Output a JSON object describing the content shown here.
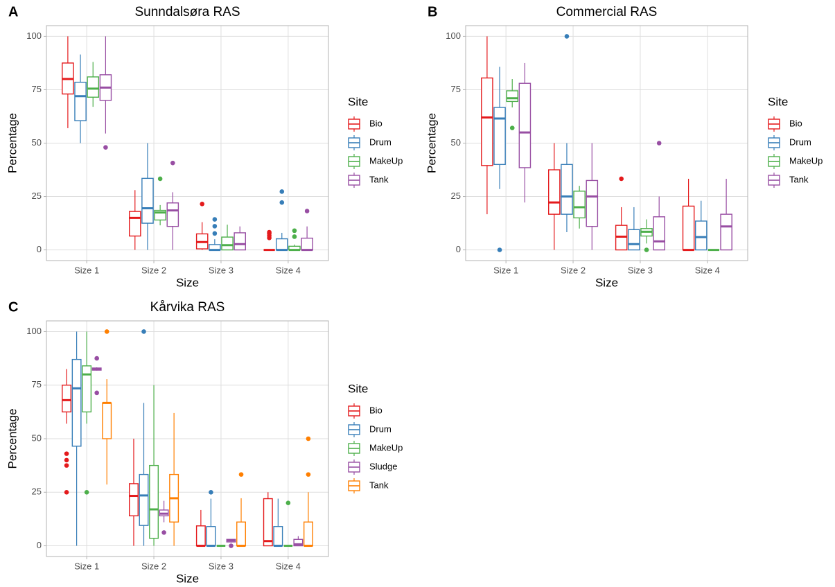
{
  "chart_data": [
    {
      "type": "box",
      "panel_label": "A",
      "title": "Sunndalsøra RAS",
      "xlabel": "Size",
      "ylabel": "Percentage",
      "legend_title": "Site",
      "categories": [
        "Size 1",
        "Size 2",
        "Size 3",
        "Size 4"
      ],
      "ylim": [
        -5,
        105
      ],
      "yticks": [
        0,
        25,
        50,
        75,
        100
      ],
      "grid": true,
      "series": [
        {
          "name": "Bio",
          "color": "#e41a1c",
          "boxes": [
            {
              "low": 57,
              "q1": 73,
              "median": 80,
              "q3": 87.5,
              "high": 100,
              "outliers": []
            },
            {
              "low": 0,
              "q1": 6.5,
              "median": 15,
              "q3": 18,
              "high": 28,
              "outliers": []
            },
            {
              "low": 0,
              "q1": 0.5,
              "median": 3.7,
              "q3": 7.5,
              "high": 13,
              "outliers": [
                21.5
              ]
            },
            {
              "low": 0,
              "q1": 0,
              "median": 0,
              "q3": 0,
              "high": 0,
              "outliers": [
                8.3,
                7.7,
                6.7,
                5.6
              ]
            }
          ]
        },
        {
          "name": "Drum",
          "color": "#377eb8",
          "boxes": [
            {
              "low": 50,
              "q1": 60.5,
              "median": 72,
              "q3": 78.5,
              "high": 91.5,
              "outliers": []
            },
            {
              "low": 0,
              "q1": 12.5,
              "median": 19.5,
              "q3": 33.5,
              "high": 50,
              "outliers": []
            },
            {
              "low": 0,
              "q1": 0,
              "median": 0,
              "q3": 2.5,
              "high": 5,
              "outliers": [
                14.3,
                11.1,
                7.7
              ]
            },
            {
              "low": 0,
              "q1": 0,
              "median": 0,
              "q3": 5.2,
              "high": 8,
              "outliers": [
                27.3,
                22.2
              ]
            }
          ]
        },
        {
          "name": "MakeUp",
          "color": "#4daf4a",
          "boxes": [
            {
              "low": 67,
              "q1": 71.5,
              "median": 75.5,
              "q3": 81,
              "high": 88,
              "outliers": []
            },
            {
              "low": 11.5,
              "q1": 14,
              "median": 17.5,
              "q3": 18.5,
              "high": 21,
              "outliers": [
                33.3
              ]
            },
            {
              "low": 0,
              "q1": 0,
              "median": 2.2,
              "q3": 6,
              "high": 11.8,
              "outliers": []
            },
            {
              "low": 0,
              "q1": 0,
              "median": 0,
              "q3": 1.7,
              "high": 2.5,
              "outliers": [
                9,
                6.2
              ]
            }
          ]
        },
        {
          "name": "Tank",
          "color": "#984ea3",
          "boxes": [
            {
              "low": 54.5,
              "q1": 70,
              "median": 76,
              "q3": 82,
              "high": 100,
              "outliers": [
                48
              ]
            },
            {
              "low": 0,
              "q1": 11,
              "median": 18.5,
              "q3": 22,
              "high": 27,
              "outliers": [
                40.7
              ]
            },
            {
              "low": 0,
              "q1": 0,
              "median": 2.7,
              "q3": 8,
              "high": 11,
              "outliers": []
            },
            {
              "low": 0,
              "q1": 0,
              "median": 0,
              "q3": 5.5,
              "high": 11,
              "outliers": [
                18.2
              ]
            }
          ]
        }
      ]
    },
    {
      "type": "box",
      "panel_label": "B",
      "title": "Commercial RAS",
      "xlabel": "Size",
      "ylabel": "Percentage",
      "legend_title": "Site",
      "categories": [
        "Size 1",
        "Size 2",
        "Size 3",
        "Size 4"
      ],
      "ylim": [
        -5,
        105
      ],
      "yticks": [
        0,
        25,
        50,
        75,
        100
      ],
      "grid": true,
      "series": [
        {
          "name": "Bio",
          "color": "#e41a1c",
          "boxes": [
            {
              "low": 16.7,
              "q1": 39.5,
              "median": 62,
              "q3": 80.5,
              "high": 100,
              "outliers": []
            },
            {
              "low": 0,
              "q1": 16.7,
              "median": 22.2,
              "q3": 37.5,
              "high": 50,
              "outliers": []
            },
            {
              "low": 0,
              "q1": 0,
              "median": 6.2,
              "q3": 11.5,
              "high": 20,
              "outliers": [
                33.3
              ]
            },
            {
              "low": 0,
              "q1": 0,
              "median": 0,
              "q3": 20.5,
              "high": 33.3,
              "outliers": []
            }
          ]
        },
        {
          "name": "Drum",
          "color": "#377eb8",
          "boxes": [
            {
              "low": 28.5,
              "q1": 40,
              "median": 61.5,
              "q3": 66.7,
              "high": 85.7,
              "outliers": [
                0
              ]
            },
            {
              "low": 8.3,
              "q1": 16.7,
              "median": 25,
              "q3": 40,
              "high": 50,
              "outliers": [
                100
              ]
            },
            {
              "low": 0,
              "q1": 0,
              "median": 2.7,
              "q3": 9.5,
              "high": 20,
              "outliers": []
            },
            {
              "low": 0,
              "q1": 0,
              "median": 6,
              "q3": 13.5,
              "high": 23,
              "outliers": []
            }
          ]
        },
        {
          "name": "MakeUp",
          "color": "#4daf4a",
          "boxes": [
            {
              "low": 66.7,
              "q1": 69.5,
              "median": 71,
              "q3": 74.5,
              "high": 80,
              "outliers": [
                57.1
              ]
            },
            {
              "low": 10,
              "q1": 15,
              "median": 20,
              "q3": 27.5,
              "high": 30,
              "outliers": []
            },
            {
              "low": 3,
              "q1": 6.5,
              "median": 8.5,
              "q3": 10,
              "high": 14.3,
              "outliers": [
                0
              ]
            },
            {
              "low": 0,
              "q1": 0,
              "median": 0,
              "q3": 0,
              "high": 0,
              "outliers": []
            }
          ]
        },
        {
          "name": "Tank",
          "color": "#984ea3",
          "boxes": [
            {
              "low": 22.2,
              "q1": 38.5,
              "median": 55,
              "q3": 78,
              "high": 87.5,
              "outliers": []
            },
            {
              "low": 0,
              "q1": 11,
              "median": 25,
              "q3": 32.5,
              "high": 50,
              "outliers": []
            },
            {
              "low": 0,
              "q1": 0,
              "median": 4,
              "q3": 15.5,
              "high": 25,
              "outliers": [
                50
              ]
            },
            {
              "low": 0,
              "q1": 0,
              "median": 11,
              "q3": 16.7,
              "high": 33.3,
              "outliers": []
            }
          ]
        }
      ]
    },
    {
      "type": "box",
      "panel_label": "C",
      "title": "Kårvika RAS",
      "xlabel": "Size",
      "ylabel": "Percentage",
      "legend_title": "Site",
      "categories": [
        "Size 1",
        "Size 2",
        "Size 3",
        "Size 4"
      ],
      "ylim": [
        -5,
        105
      ],
      "yticks": [
        0,
        25,
        50,
        75,
        100
      ],
      "grid": true,
      "series": [
        {
          "name": "Bio",
          "color": "#e41a1c",
          "boxes": [
            {
              "low": 57,
              "q1": 62.5,
              "median": 68,
              "q3": 75,
              "high": 82.5,
              "outliers": [
                43,
                40,
                37.5,
                25
              ]
            },
            {
              "low": 0,
              "q1": 14,
              "median": 23.3,
              "q3": 29,
              "high": 50,
              "outliers": []
            },
            {
              "low": 0,
              "q1": 0,
              "median": 0,
              "q3": 9.3,
              "high": 16.7,
              "outliers": []
            },
            {
              "low": 0,
              "q1": 0,
              "median": 2.2,
              "q3": 22,
              "high": 25,
              "outliers": []
            }
          ]
        },
        {
          "name": "Drum",
          "color": "#377eb8",
          "boxes": [
            {
              "low": 0,
              "q1": 46.5,
              "median": 73.5,
              "q3": 87,
              "high": 100,
              "outliers": []
            },
            {
              "low": 0,
              "q1": 9.5,
              "median": 23.5,
              "q3": 33.3,
              "high": 66.7,
              "outliers": [
                100
              ]
            },
            {
              "low": 0,
              "q1": 0,
              "median": 0,
              "q3": 9,
              "high": 22,
              "outliers": [
                25
              ]
            },
            {
              "low": 0,
              "q1": 0,
              "median": 0,
              "q3": 9,
              "high": 22,
              "outliers": []
            }
          ]
        },
        {
          "name": "MakeUp",
          "color": "#4daf4a",
          "boxes": [
            {
              "low": 57,
              "q1": 62.5,
              "median": 80,
              "q3": 84,
              "high": 100,
              "outliers": [
                25
              ]
            },
            {
              "low": 0,
              "q1": 3.5,
              "median": 17,
              "q3": 37.5,
              "high": 75,
              "outliers": []
            },
            {
              "low": 0,
              "q1": 0,
              "median": 0,
              "q3": 0,
              "high": 0,
              "outliers": []
            },
            {
              "low": 0,
              "q1": 0,
              "median": 0,
              "q3": 0,
              "high": 0,
              "outliers": [
                20
              ]
            }
          ]
        },
        {
          "name": "Sludge",
          "color": "#984ea3",
          "boxes": [
            {
              "low": 81.8,
              "q1": 82,
              "median": 82.5,
              "q3": 83,
              "high": 83.3,
              "outliers": [
                87.5,
                71.4
              ]
            },
            {
              "low": 11,
              "q1": 14,
              "median": 15,
              "q3": 16.7,
              "high": 21,
              "outliers": [
                6.2
              ]
            },
            {
              "low": 1.5,
              "q1": 1.8,
              "median": 2.5,
              "q3": 3,
              "high": 3,
              "outliers": [
                0
              ]
            },
            {
              "low": 0,
              "q1": 0,
              "median": 0.7,
              "q3": 3,
              "high": 4.5,
              "outliers": []
            }
          ]
        },
        {
          "name": "Tank",
          "color": "#ff7f00",
          "boxes": [
            {
              "low": 28.6,
              "q1": 50,
              "median": 66.7,
              "q3": 66.7,
              "high": 77.8,
              "outliers": [
                100
              ]
            },
            {
              "low": 0,
              "q1": 11.1,
              "median": 22.2,
              "q3": 33.3,
              "high": 62,
              "outliers": []
            },
            {
              "low": 0,
              "q1": 0,
              "median": 0,
              "q3": 11.1,
              "high": 22.2,
              "outliers": [
                33.3
              ]
            },
            {
              "low": 0,
              "q1": 0,
              "median": 0,
              "q3": 11.1,
              "high": 25,
              "outliers": [
                50,
                33.3
              ]
            }
          ]
        }
      ]
    }
  ]
}
